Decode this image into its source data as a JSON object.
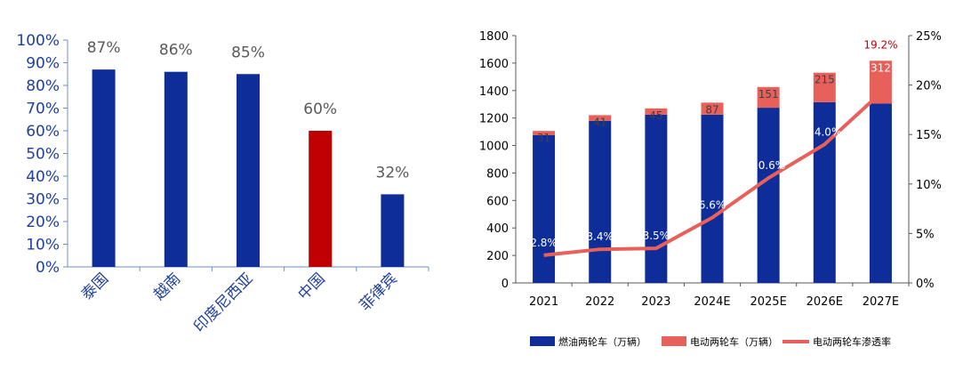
{
  "colors": {
    "blue": "#0E2D99",
    "red": "#C00000",
    "salmon": "#E8605A",
    "line": "#E8605A",
    "axis_text_blue": "#1F3F9C",
    "value_label": "#595959"
  },
  "chart_data": [
    {
      "type": "bar",
      "categories": [
        "泰国",
        "越南",
        "印度尼西亚",
        "中国",
        "菲律宾"
      ],
      "values": [
        87,
        86,
        85,
        60,
        32
      ],
      "value_labels": [
        "87%",
        "86%",
        "85%",
        "60%",
        "32%"
      ],
      "highlight_index": 3,
      "ylim": [
        0,
        100
      ],
      "y_ticks": [
        "0%",
        "10%",
        "20%",
        "30%",
        "40%",
        "50%",
        "60%",
        "70%",
        "80%",
        "90%",
        "100%"
      ],
      "grid": false
    },
    {
      "type": "bar",
      "stacked": true,
      "categories": [
        "2021",
        "2022",
        "2023",
        "2024E",
        "2025E",
        "2026E",
        "2027E"
      ],
      "series": [
        {
          "name": "燃油两轮车（万辆）",
          "type": "bar",
          "color": "#0E2D99",
          "values": [
            1075,
            1180,
            1225,
            1225,
            1275,
            1315,
            1305
          ]
        },
        {
          "name": "电动两轮车（万辆）",
          "type": "bar",
          "color": "#E8605A",
          "values": [
            31,
            41,
            45,
            87,
            151,
            215,
            312
          ]
        },
        {
          "name": "电动两轮车渗透率",
          "type": "line",
          "axis": "right",
          "color": "#E8605A",
          "values": [
            2.8,
            3.4,
            3.5,
            6.6,
            10.6,
            14.0,
            19.2
          ],
          "labels": [
            "2.8%",
            "3.4%",
            "3.5%",
            "6.6%",
            "10.6%",
            "14.0%",
            "19.2%"
          ]
        }
      ],
      "ylim_left": [
        0,
        1800
      ],
      "y_ticks_left": [
        "0",
        "200",
        "400",
        "600",
        "800",
        "1000",
        "1200",
        "1400",
        "1600",
        "1800"
      ],
      "ylim_right": [
        0,
        25
      ],
      "y_ticks_right": [
        "0%",
        "5%",
        "10%",
        "15%",
        "20%",
        "25%"
      ],
      "legend_position": "bottom",
      "grid": false
    }
  ]
}
